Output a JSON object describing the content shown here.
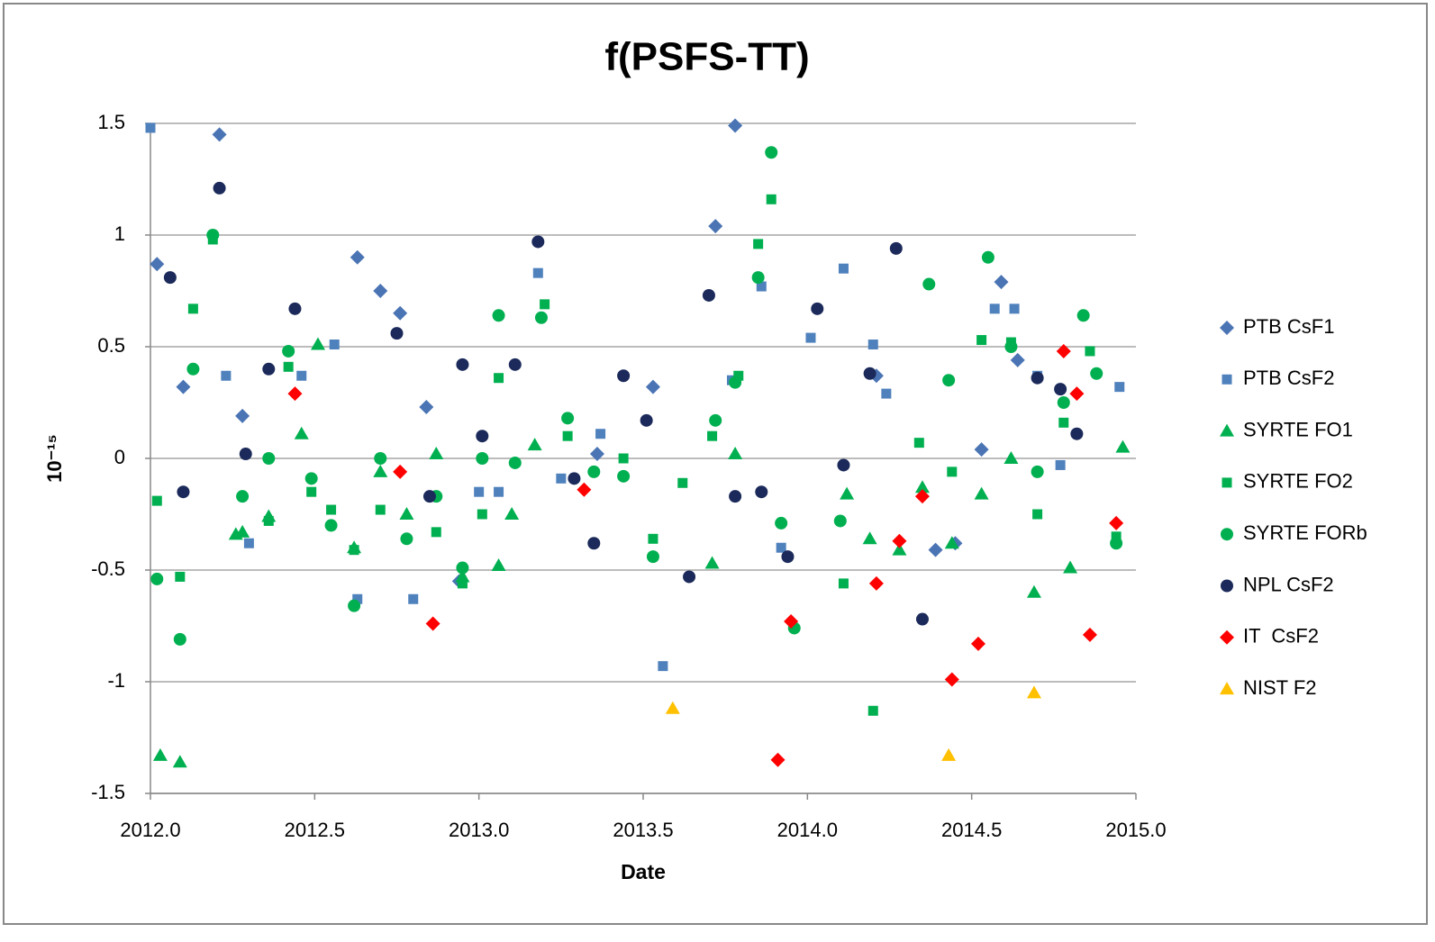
{
  "chart_data": {
    "type": "scatter",
    "title": "f(PSFS-TT)",
    "xlabel": "Date",
    "ylabel": "10⁻¹⁵",
    "xlim": [
      2012,
      2015
    ],
    "ylim": [
      -1.5,
      1.5
    ],
    "xticks": [
      {
        "value": 2012,
        "label": "2012.0"
      },
      {
        "value": 2012.5,
        "label": "2012.5"
      },
      {
        "value": 2013,
        "label": "2013.0"
      },
      {
        "value": 2013.5,
        "label": "2013.5"
      },
      {
        "value": 2014,
        "label": "2014.0"
      },
      {
        "value": 2014.5,
        "label": "2014.5"
      },
      {
        "value": 2015,
        "label": "2015.0"
      }
    ],
    "yticks": [
      1.5,
      1,
      0.5,
      0,
      -0.5,
      -1,
      -1.5
    ],
    "grid": true,
    "legend": "right",
    "series": [
      {
        "name": "PTB CsF1",
        "color": "#4a74b4",
        "marker": "diamond",
        "x": [
          2012.02,
          2012.1,
          2012.21,
          2012.28,
          2012.63,
          2012.7,
          2012.76,
          2012.84,
          2012.94,
          2013.36,
          2013.53,
          2013.72,
          2013.78,
          2014.21,
          2014.39,
          2014.45,
          2014.53,
          2014.59,
          2014.64
        ],
        "values": [
          0.87,
          0.32,
          1.45,
          0.19,
          0.9,
          0.75,
          0.65,
          0.23,
          -0.55,
          0.02,
          0.32,
          1.04,
          1.49,
          0.37,
          -0.41,
          -0.38,
          0.04,
          0.79,
          0.44
        ]
      },
      {
        "name": "PTB CsF2",
        "color": "#4f81bd",
        "marker": "square",
        "x": [
          2012.0,
          2012.23,
          2012.3,
          2012.46,
          2012.56,
          2012.63,
          2012.8,
          2013.0,
          2013.06,
          2013.18,
          2013.25,
          2013.37,
          2013.56,
          2013.77,
          2013.86,
          2013.92,
          2014.01,
          2014.11,
          2014.2,
          2014.24,
          2014.57,
          2014.63,
          2014.7,
          2014.77,
          2014.95
        ],
        "values": [
          1.48,
          0.37,
          -0.38,
          0.37,
          0.51,
          -0.63,
          -0.63,
          -0.15,
          -0.15,
          0.83,
          -0.09,
          0.11,
          -0.93,
          0.35,
          0.77,
          -0.4,
          0.54,
          0.85,
          0.51,
          0.29,
          0.67,
          0.67,
          0.37,
          -0.03,
          0.32
        ]
      },
      {
        "name": "SYRTE FO1",
        "color": "#00b050",
        "marker": "triangle",
        "x": [
          2012.03,
          2012.09,
          2012.26,
          2012.28,
          2012.36,
          2012.46,
          2012.51,
          2012.62,
          2012.7,
          2012.78,
          2012.87,
          2012.95,
          2013.06,
          2013.1,
          2013.17,
          2013.71,
          2013.78,
          2014.12,
          2014.19,
          2014.28,
          2014.35,
          2014.44,
          2014.53,
          2014.62,
          2014.69,
          2014.8,
          2014.96
        ],
        "values": [
          -1.33,
          -1.36,
          -0.34,
          -0.33,
          -0.26,
          0.11,
          0.51,
          -0.4,
          -0.06,
          -0.25,
          0.02,
          -0.53,
          -0.48,
          -0.25,
          0.06,
          -0.47,
          0.02,
          -0.16,
          -0.36,
          -0.41,
          -0.13,
          -0.38,
          -0.16,
          0.0,
          -0.6,
          -0.49,
          0.05
        ]
      },
      {
        "name": "SYRTE FO2",
        "color": "#00b050",
        "marker": "square",
        "x": [
          2012.02,
          2012.09,
          2012.13,
          2012.19,
          2012.36,
          2012.42,
          2012.49,
          2012.55,
          2012.62,
          2012.7,
          2012.87,
          2012.95,
          2013.01,
          2013.06,
          2013.2,
          2013.27,
          2013.44,
          2013.53,
          2013.62,
          2013.71,
          2013.79,
          2013.85,
          2013.89,
          2014.11,
          2014.2,
          2014.34,
          2014.44,
          2014.53,
          2014.62,
          2014.7,
          2014.78,
          2014.86,
          2014.94
        ],
        "values": [
          -0.19,
          -0.53,
          0.67,
          0.98,
          -0.28,
          0.41,
          -0.15,
          -0.23,
          -0.41,
          -0.23,
          -0.33,
          -0.56,
          -0.25,
          0.36,
          0.69,
          0.1,
          0.0,
          -0.36,
          -0.11,
          0.1,
          0.37,
          0.96,
          1.16,
          -0.56,
          -1.13,
          0.07,
          -0.06,
          0.53,
          0.52,
          -0.25,
          0.16,
          0.48,
          -0.35
        ]
      },
      {
        "name": "SYRTE FORb",
        "color": "#00b050",
        "marker": "circle",
        "x": [
          2012.02,
          2012.09,
          2012.13,
          2012.19,
          2012.28,
          2012.36,
          2012.42,
          2012.49,
          2012.55,
          2012.62,
          2012.7,
          2012.78,
          2012.87,
          2012.95,
          2013.01,
          2013.06,
          2013.11,
          2013.19,
          2013.27,
          2013.35,
          2013.44,
          2013.53,
          2013.72,
          2013.78,
          2013.85,
          2013.89,
          2013.92,
          2013.96,
          2014.1,
          2014.37,
          2014.43,
          2014.55,
          2014.62,
          2014.7,
          2014.78,
          2014.84,
          2014.88,
          2014.94
        ],
        "values": [
          -0.54,
          -0.81,
          0.4,
          1.0,
          -0.17,
          0.0,
          0.48,
          -0.09,
          -0.3,
          -0.66,
          0.0,
          -0.36,
          -0.17,
          -0.49,
          0.0,
          0.64,
          -0.02,
          0.63,
          0.18,
          -0.06,
          -0.08,
          -0.44,
          0.17,
          0.34,
          0.81,
          1.37,
          -0.29,
          -0.76,
          -0.28,
          0.78,
          0.35,
          0.9,
          0.5,
          -0.06,
          0.25,
          0.64,
          0.38,
          -0.38
        ]
      },
      {
        "name": "NPL CsF2",
        "color": "#1b2a5a",
        "marker": "circle",
        "x": [
          2012.06,
          2012.1,
          2012.21,
          2012.29,
          2012.36,
          2012.44,
          2012.75,
          2012.85,
          2012.95,
          2013.01,
          2013.11,
          2013.18,
          2013.29,
          2013.35,
          2013.44,
          2013.51,
          2013.64,
          2013.7,
          2013.78,
          2013.86,
          2013.94,
          2014.03,
          2014.11,
          2014.19,
          2014.27,
          2014.35,
          2014.7,
          2014.77,
          2014.82
        ],
        "values": [
          0.81,
          -0.15,
          1.21,
          0.02,
          0.4,
          0.67,
          0.56,
          -0.17,
          0.42,
          0.1,
          0.42,
          0.97,
          -0.09,
          -0.38,
          0.37,
          0.17,
          -0.53,
          0.73,
          -0.17,
          -0.15,
          -0.44,
          0.67,
          -0.03,
          0.38,
          0.94,
          -0.72,
          0.36,
          0.31,
          0.11
        ]
      },
      {
        "name": "IT  CsF2",
        "color": "#ff0000",
        "marker": "diamond",
        "x": [
          2012.44,
          2012.76,
          2012.86,
          2013.32,
          2013.91,
          2013.95,
          2014.21,
          2014.28,
          2014.35,
          2014.44,
          2014.52,
          2014.78,
          2014.82,
          2014.86,
          2014.94
        ],
        "values": [
          0.29,
          -0.06,
          -0.74,
          -0.14,
          -1.35,
          -0.73,
          -0.56,
          -0.37,
          -0.17,
          -0.99,
          -0.83,
          0.48,
          0.29,
          -0.79,
          -0.29
        ]
      },
      {
        "name": "NIST F2",
        "color": "#ffc000",
        "marker": "triangle",
        "x": [
          2013.59,
          2014.43,
          2014.69
        ],
        "values": [
          -1.12,
          -1.33,
          -1.05
        ]
      }
    ]
  }
}
